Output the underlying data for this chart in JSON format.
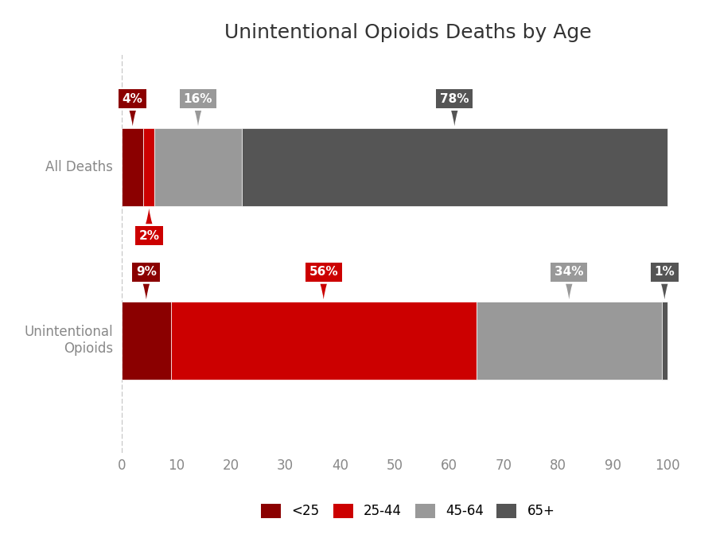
{
  "title": "Unintentional Opioids Deaths by Age",
  "categories": [
    "All Deaths",
    "Unintentional Opioids"
  ],
  "segments": {
    "All Deaths": {
      "<25": 4,
      "25-44": 2,
      "45-64": 16,
      "65+": 78
    },
    "Unintentional Opioids": {
      "<25": 9,
      "25-44": 56,
      "45-64": 34,
      "65+": 1
    }
  },
  "colors": {
    "<25": "#8B0000",
    "25-44": "#CC0000",
    "45-64": "#999999",
    "65+": "#555555"
  },
  "age_groups": [
    "<25",
    "25-44",
    "45-64",
    "65+"
  ],
  "label_colors": {
    "<25": "#8B0000",
    "25-44": "#CC0000",
    "45-64": "#888888",
    "65+": "#4d4d4d"
  },
  "xlim": [
    0,
    105
  ],
  "xticks": [
    0,
    10,
    20,
    30,
    40,
    50,
    60,
    70,
    80,
    90,
    100
  ],
  "background_color": "#ffffff",
  "bar_height": 0.45,
  "title_fontsize": 18,
  "tick_fontsize": 12,
  "label_fontsize": 11,
  "legend_fontsize": 12,
  "axis_label_color": "#888888",
  "y_positions": {
    "All Deaths": 1.0,
    "Unintentional Opioids": 0.0
  },
  "label_above": {
    "All Deaths": {
      "<25": true,
      "25-44": false,
      "45-64": true,
      "65+": true
    },
    "Unintentional Opioids": {
      "<25": true,
      "25-44": true,
      "45-64": true,
      "65+": true
    }
  }
}
